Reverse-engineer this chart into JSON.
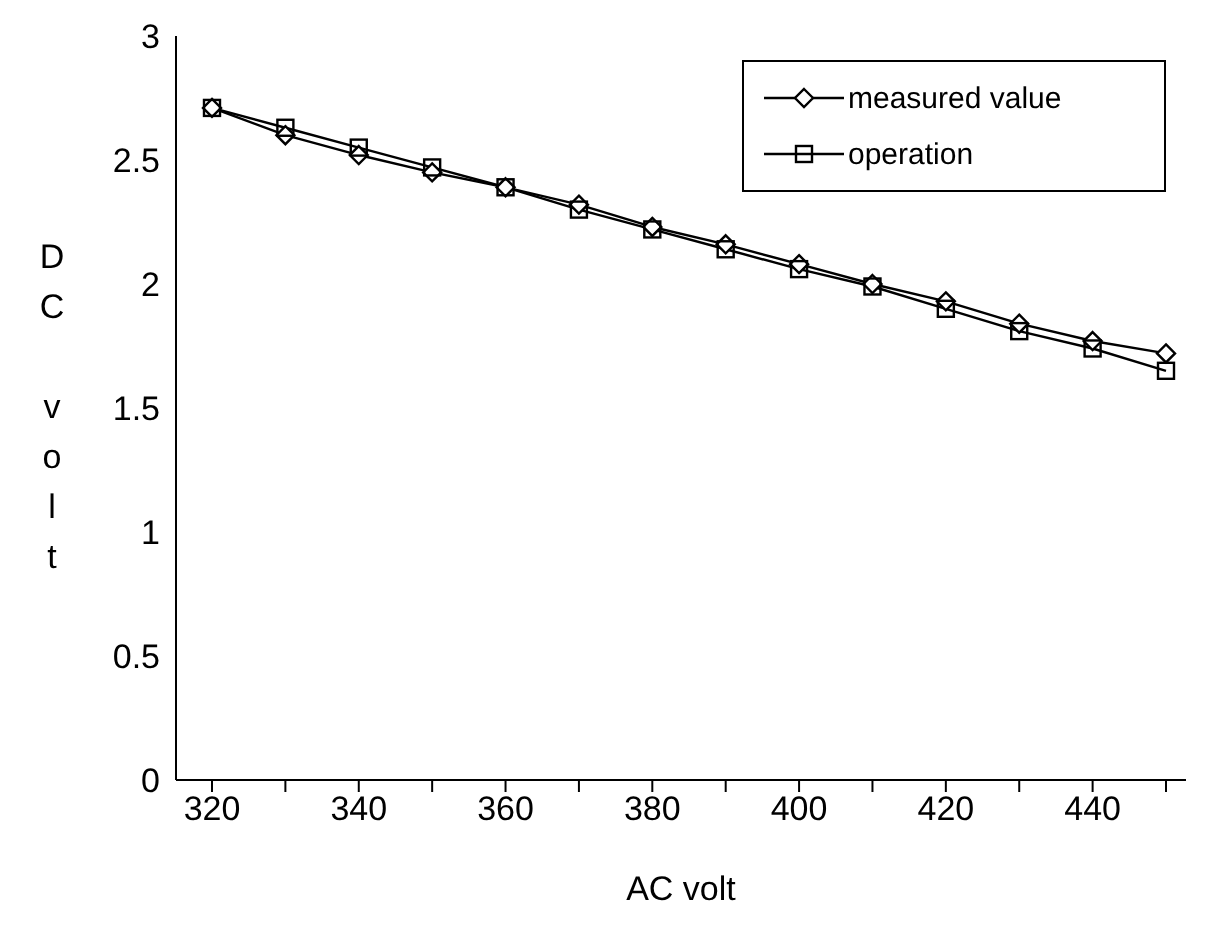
{
  "chart_data": {
    "type": "line",
    "xlabel": "AC   volt",
    "ylabel": "DC volt",
    "categories": [
      "320",
      null,
      "340",
      null,
      "360",
      null,
      "380",
      null,
      "400",
      null,
      "420",
      null,
      "440",
      null
    ],
    "ylim": [
      0,
      3
    ],
    "yticks": [
      0,
      0.5,
      1,
      1.5,
      2,
      2.5,
      3
    ],
    "legend": "top right",
    "grid": false,
    "series": [
      {
        "name": "measured value",
        "color": "#000000",
        "marker": "diamond",
        "values": [
          2.71,
          2.6,
          2.52,
          2.45,
          2.39,
          2.32,
          2.23,
          2.16,
          2.08,
          2.0,
          1.93,
          1.84,
          1.77,
          1.72
        ]
      },
      {
        "name": "operation",
        "color": "#000000",
        "marker": "square",
        "values": [
          2.71,
          2.63,
          2.55,
          2.47,
          2.39,
          2.3,
          2.22,
          2.14,
          2.06,
          1.99,
          1.9,
          1.81,
          1.74,
          1.65
        ]
      }
    ]
  }
}
